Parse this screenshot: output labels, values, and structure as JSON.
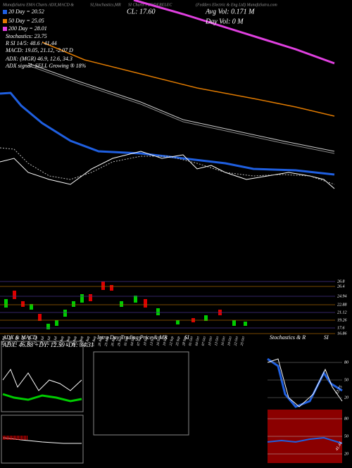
{
  "header": {
    "left": "MunafaSutra EMA Charts ADX,MACD & ",
    "mid": "SI,Stochastics,MR",
    "chartname": "SI Charts FEDDERELEC",
    "right": "(Fedders Electric & Eng Ltd) MunafaSutra.com"
  },
  "overlay": {
    "ema20": "20 Day = 20.52",
    "ema50": "50 Day = 25.05",
    "ema200": "200 Day = 28.01",
    "stoch": "Stochastics: 23.75",
    "rsi": "R        SI 14/5: 48.6 / 41.44",
    "macd": "MACD: 19.05, 21.12, -2.07 D",
    "adx": "ADX:                (MGR) 46.9, 12.6, 34.3",
    "adx_signal": "ADX  signal: SELL Growing ® 18%",
    "close": "CL: 17.60",
    "avg_vol": "Avg Vol: 0.171 M",
    "day_vol": "Day Vol: 0    M"
  },
  "price_labels": [
    "26.8",
    "26.4",
    "24.94",
    "22.88",
    "21.12",
    "19.26",
    "17.6",
    "16.86"
  ],
  "dates": [
    "06 Jul",
    "09 Jul",
    "12 Jul",
    "15 Jul",
    "18 Jul",
    "21 Jul",
    "24 Jul",
    "27 Jul",
    "30 Jul",
    "02 Aug",
    "05 Aug",
    "08 Aug",
    "11 Aug",
    "14 Aug",
    "17 Aug",
    "20 Aug",
    "23 Aug",
    "26 Aug",
    "29 Aug",
    "01 Sep",
    "04 Sep",
    "07 Sep",
    "10 Sep",
    "13 Sep",
    "16 Sep",
    "19 Sep",
    "22 Sep",
    "25 Sep",
    "28 Sep",
    "01 Oct",
    "04 Oct",
    "07 Oct",
    "10 Oct",
    "13 Oct",
    "16 Oct",
    "19 Oct",
    "22 Oct",
    "25 Oct"
  ],
  "panels": {
    "adx_title": "ADX  & MACD",
    "adx_values": "ADX: 46.88  +DY: 12.59  -DY: 34.31",
    "intra_title": "Intra Day Trading Price  & MR",
    "intra_title2": "SI",
    "stoch_title": "Stochastics & R",
    "stoch_title2": "SI",
    "stoch_ticks": [
      "80",
      "50",
      "20"
    ],
    "rsi_ticks": [
      "80",
      "50",
      "20"
    ],
    "stoch_last": "23.75",
    "rsi_last": "41.44"
  }
}
